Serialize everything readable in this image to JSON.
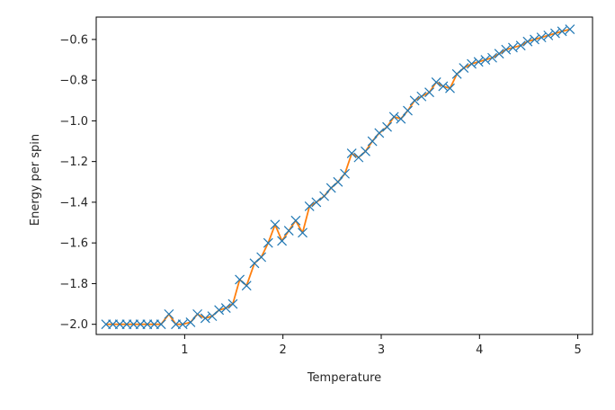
{
  "chart_data": {
    "type": "line",
    "title": "",
    "xlabel": "Temperature",
    "ylabel": "Energy per spin",
    "xlim": [
      0.1,
      5.15
    ],
    "ylim": [
      -2.05,
      -0.49
    ],
    "xticks": [
      1,
      2,
      3,
      4,
      5
    ],
    "xtick_labels": [
      "1",
      "2",
      "3",
      "4",
      "5"
    ],
    "yticks": [
      -2.0,
      -1.8,
      -1.6,
      -1.4,
      -1.2,
      -1.0,
      -0.8,
      -0.6
    ],
    "ytick_labels": [
      "−2.0",
      "−1.8",
      "−1.6",
      "−1.4",
      "−1.2",
      "−1.0",
      "−0.8",
      "−0.6"
    ],
    "grid": false,
    "series": [
      {
        "marker": "x",
        "line": "none",
        "color": "#1f77b4",
        "x": [
          0.2,
          0.27,
          0.34,
          0.41,
          0.48,
          0.55,
          0.62,
          0.69,
          0.76,
          0.84,
          0.91,
          0.98,
          1.06,
          1.13,
          1.21,
          1.28,
          1.35,
          1.42,
          1.49,
          1.56,
          1.63,
          1.71,
          1.78,
          1.85,
          1.92,
          1.99,
          2.06,
          2.13,
          2.2,
          2.27,
          2.34,
          2.42,
          2.49,
          2.56,
          2.63,
          2.7,
          2.77,
          2.84,
          2.91,
          2.98,
          3.06,
          3.13,
          3.2,
          3.27,
          3.34,
          3.41,
          3.49,
          3.56,
          3.63,
          3.7,
          3.77,
          3.84,
          3.92,
          3.99,
          4.06,
          4.13,
          4.2,
          4.27,
          4.34,
          4.42,
          4.49,
          4.56,
          4.63,
          4.7,
          4.77,
          4.84,
          4.92
        ],
        "y": [
          -2.0,
          -2.0,
          -2.0,
          -2.0,
          -2.0,
          -2.0,
          -2.0,
          -2.0,
          -2.0,
          -1.95,
          -2.0,
          -2.0,
          -1.99,
          -1.95,
          -1.97,
          -1.96,
          -1.93,
          -1.92,
          -1.9,
          -1.78,
          -1.81,
          -1.7,
          -1.67,
          -1.6,
          -1.51,
          -1.59,
          -1.54,
          -1.49,
          -1.55,
          -1.42,
          -1.4,
          -1.37,
          -1.33,
          -1.3,
          -1.26,
          -1.16,
          -1.18,
          -1.15,
          -1.1,
          -1.06,
          -1.03,
          -0.98,
          -0.99,
          -0.95,
          -0.9,
          -0.88,
          -0.86,
          -0.81,
          -0.83,
          -0.84,
          -0.77,
          -0.74,
          -0.72,
          -0.71,
          -0.7,
          -0.69,
          -0.67,
          -0.65,
          -0.64,
          -0.63,
          -0.61,
          -0.6,
          -0.59,
          -0.58,
          -0.57,
          -0.56,
          -0.55
        ]
      },
      {
        "marker": "none",
        "line": "solid",
        "color": "#ff7f0e",
        "x": [
          0.2,
          0.27,
          0.34,
          0.41,
          0.48,
          0.55,
          0.62,
          0.69,
          0.76,
          0.84,
          0.91,
          0.98,
          1.06,
          1.13,
          1.21,
          1.28,
          1.35,
          1.42,
          1.49,
          1.56,
          1.63,
          1.71,
          1.78,
          1.85,
          1.92,
          1.99,
          2.06,
          2.13,
          2.2,
          2.27,
          2.34,
          2.42,
          2.49,
          2.56,
          2.63,
          2.7,
          2.77,
          2.84,
          2.91,
          2.98,
          3.06,
          3.13,
          3.2,
          3.27,
          3.34,
          3.41,
          3.49,
          3.56,
          3.63,
          3.7,
          3.77,
          3.84,
          3.92,
          3.99,
          4.06,
          4.13,
          4.2,
          4.27,
          4.34,
          4.42,
          4.49,
          4.56,
          4.63,
          4.7,
          4.77,
          4.84,
          4.92
        ],
        "y": [
          -2.0,
          -2.0,
          -2.0,
          -2.0,
          -2.0,
          -2.0,
          -2.0,
          -2.0,
          -2.0,
          -1.95,
          -2.0,
          -2.0,
          -1.99,
          -1.95,
          -1.97,
          -1.96,
          -1.93,
          -1.92,
          -1.9,
          -1.78,
          -1.81,
          -1.7,
          -1.67,
          -1.6,
          -1.51,
          -1.59,
          -1.54,
          -1.49,
          -1.55,
          -1.42,
          -1.4,
          -1.37,
          -1.33,
          -1.3,
          -1.26,
          -1.16,
          -1.18,
          -1.15,
          -1.1,
          -1.06,
          -1.03,
          -0.98,
          -0.99,
          -0.95,
          -0.9,
          -0.88,
          -0.86,
          -0.81,
          -0.83,
          -0.84,
          -0.77,
          -0.74,
          -0.72,
          -0.71,
          -0.7,
          -0.69,
          -0.67,
          -0.65,
          -0.64,
          -0.63,
          -0.61,
          -0.6,
          -0.59,
          -0.58,
          -0.57,
          -0.56,
          -0.55
        ]
      }
    ]
  }
}
